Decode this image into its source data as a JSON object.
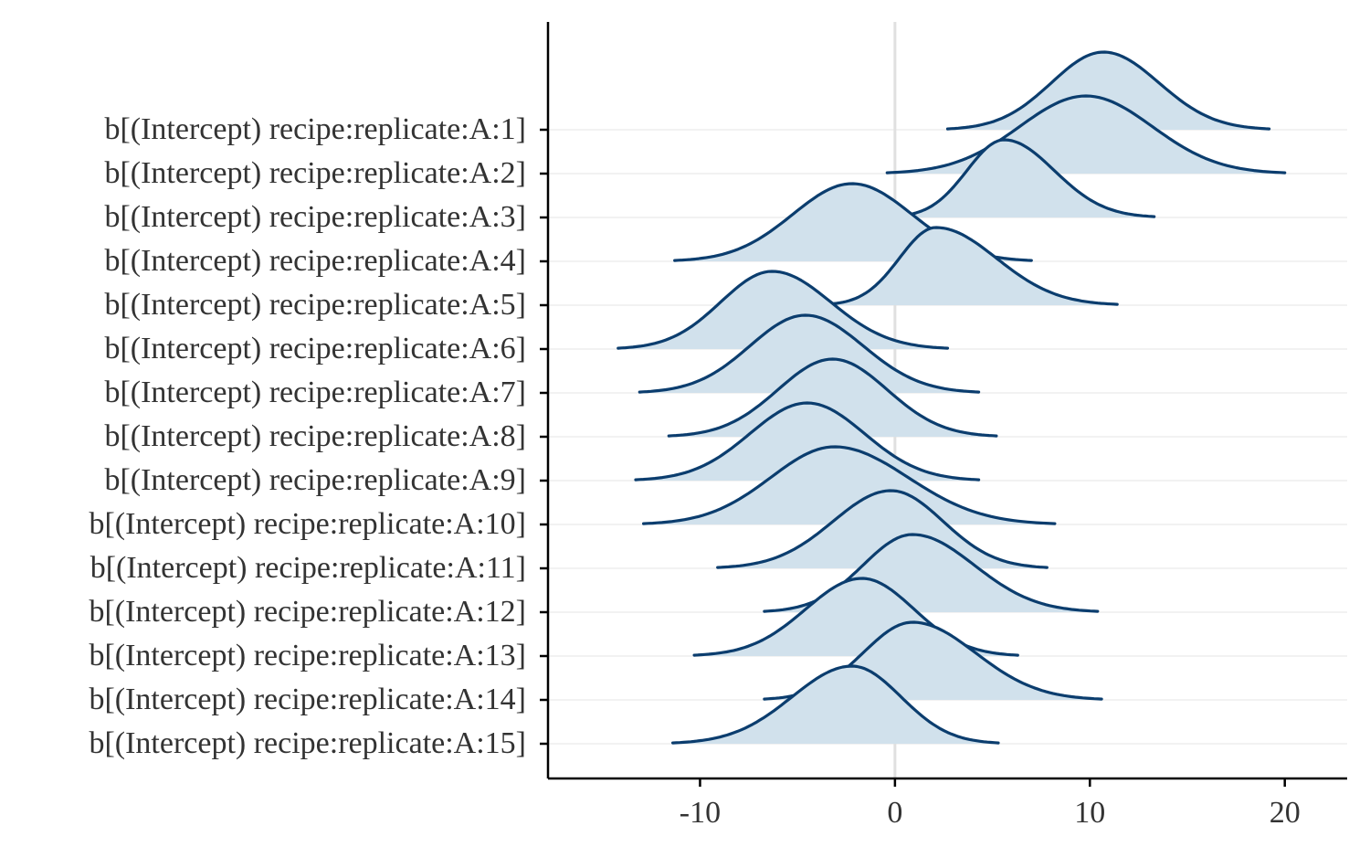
{
  "chart_data": {
    "type": "ridgeline",
    "categories": [
      "b[(Intercept) recipe:replicate:A:1]",
      "b[(Intercept) recipe:replicate:A:2]",
      "b[(Intercept) recipe:replicate:A:3]",
      "b[(Intercept) recipe:replicate:A:4]",
      "b[(Intercept) recipe:replicate:A:5]",
      "b[(Intercept) recipe:replicate:A:6]",
      "b[(Intercept) recipe:replicate:A:7]",
      "b[(Intercept) recipe:replicate:A:8]",
      "b[(Intercept) recipe:replicate:A:9]",
      "b[(Intercept) recipe:replicate:A:10]",
      "b[(Intercept) recipe:replicate:A:11]",
      "b[(Intercept) recipe:replicate:A:12]",
      "b[(Intercept) recipe:replicate:A:13]",
      "b[(Intercept) recipe:replicate:A:14]",
      "b[(Intercept) recipe:replicate:A:15]"
    ],
    "series": [
      {
        "min": 2.7,
        "peak": 10.7,
        "max": 19.2
      },
      {
        "min": -0.4,
        "peak": 9.8,
        "max": 20.0
      },
      {
        "min": -0.1,
        "peak": 5.6,
        "max": 13.3
      },
      {
        "min": -11.3,
        "peak": -2.2,
        "max": 7.0
      },
      {
        "min": -3.5,
        "peak": 2.1,
        "max": 11.4
      },
      {
        "min": -14.2,
        "peak": -6.3,
        "max": 2.7
      },
      {
        "min": -13.1,
        "peak": -4.6,
        "max": 4.3
      },
      {
        "min": -11.6,
        "peak": -3.2,
        "max": 5.2
      },
      {
        "min": -13.3,
        "peak": -4.5,
        "max": 4.3
      },
      {
        "min": -12.9,
        "peak": -3.1,
        "max": 8.2
      },
      {
        "min": -9.1,
        "peak": -0.2,
        "max": 7.8
      },
      {
        "min": -6.7,
        "peak": 0.9,
        "max": 10.4
      },
      {
        "min": -10.3,
        "peak": -1.7,
        "max": 6.3
      },
      {
        "min": -6.7,
        "peak": 0.9,
        "max": 10.6
      },
      {
        "min": -11.4,
        "peak": -2.2,
        "max": 5.3
      }
    ],
    "x_ticks": [
      -10,
      0,
      10,
      20
    ],
    "xlim": [
      -17.8,
      23.2
    ],
    "reference_line_x": 0,
    "grid": "horizontal",
    "colors": {
      "fill": "#d1e1ec",
      "outline": "#0b3d6e"
    }
  }
}
